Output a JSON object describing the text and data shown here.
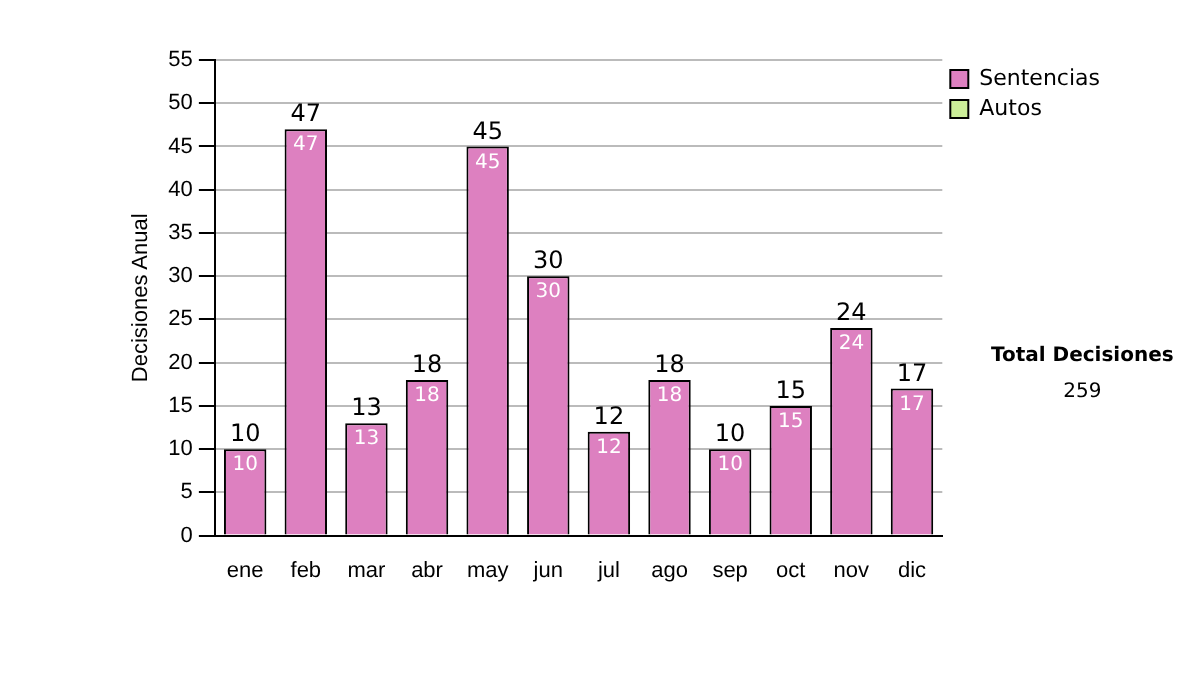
{
  "chart_data": {
    "type": "bar",
    "ylabel": "Decisiones Anual",
    "categories": [
      "ene",
      "feb",
      "mar",
      "abr",
      "may",
      "jun",
      "jul",
      "ago",
      "sep",
      "oct",
      "nov",
      "dic"
    ],
    "series": [
      {
        "name": "Sentencias",
        "color": "#dd80c0",
        "values": [
          10,
          47,
          13,
          18,
          45,
          30,
          12,
          18,
          10,
          15,
          24,
          17
        ]
      },
      {
        "name": "Autos",
        "color": "#ccee99",
        "values": [
          null,
          null,
          null,
          null,
          null,
          null,
          null,
          null,
          null,
          null,
          null,
          null
        ]
      }
    ],
    "stacked": true,
    "data_labels": true,
    "totals": [
      "10",
      "47",
      "13",
      "18",
      "45",
      "30",
      "12",
      "18",
      "10",
      "15",
      "24",
      "17"
    ],
    "ylim": [
      0,
      55
    ],
    "yticks": [
      0,
      5,
      10,
      15,
      20,
      25,
      30,
      35,
      40,
      45,
      50,
      55
    ],
    "grid": "y",
    "legend": "right",
    "annotations": [
      "Total Decisiones",
      "259"
    ]
  }
}
